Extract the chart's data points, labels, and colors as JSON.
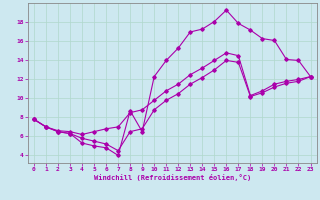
{
  "xlabel": "Windchill (Refroidissement éolien,°C)",
  "bg_color": "#cde8f0",
  "grid_color": "#b0d8cc",
  "line_color": "#aa00aa",
  "xlim": [
    -0.5,
    23.5
  ],
  "ylim": [
    3.2,
    20.0
  ],
  "yticks": [
    4,
    6,
    8,
    10,
    12,
    14,
    16,
    18
  ],
  "xticks": [
    0,
    1,
    2,
    3,
    4,
    5,
    6,
    7,
    8,
    9,
    10,
    11,
    12,
    13,
    14,
    15,
    16,
    17,
    18,
    19,
    20,
    21,
    22,
    23
  ],
  "line1_x": [
    0,
    1,
    2,
    3,
    4,
    5,
    6,
    7,
    8,
    9,
    10,
    11,
    12,
    13,
    14,
    15,
    16,
    17,
    18,
    19,
    20,
    21,
    22,
    23
  ],
  "line1_y": [
    7.8,
    7.0,
    6.5,
    6.3,
    5.3,
    5.0,
    4.8,
    4.0,
    8.7,
    6.5,
    12.3,
    14.0,
    15.3,
    17.0,
    17.3,
    18.1,
    19.3,
    17.9,
    17.2,
    16.3,
    16.1,
    14.1,
    14.0,
    12.3
  ],
  "line2_x": [
    0,
    1,
    2,
    3,
    4,
    5,
    6,
    7,
    8,
    9,
    10,
    11,
    12,
    13,
    14,
    15,
    16,
    17,
    18,
    19,
    20,
    21,
    22,
    23
  ],
  "line2_y": [
    7.8,
    7.0,
    6.6,
    6.5,
    6.2,
    6.5,
    6.8,
    7.0,
    8.5,
    8.8,
    9.8,
    10.8,
    11.5,
    12.5,
    13.2,
    14.0,
    14.8,
    14.5,
    10.3,
    10.8,
    11.5,
    11.8,
    12.0,
    12.3
  ],
  "line3_x": [
    0,
    1,
    2,
    3,
    4,
    5,
    6,
    7,
    8,
    9,
    10,
    11,
    12,
    13,
    14,
    15,
    16,
    17,
    18,
    19,
    20,
    21,
    22,
    23
  ],
  "line3_y": [
    7.8,
    7.0,
    6.5,
    6.3,
    5.8,
    5.5,
    5.2,
    4.5,
    6.5,
    6.8,
    8.8,
    9.8,
    10.5,
    11.5,
    12.2,
    13.0,
    14.0,
    13.8,
    10.2,
    10.6,
    11.2,
    11.6,
    11.8,
    12.3
  ]
}
